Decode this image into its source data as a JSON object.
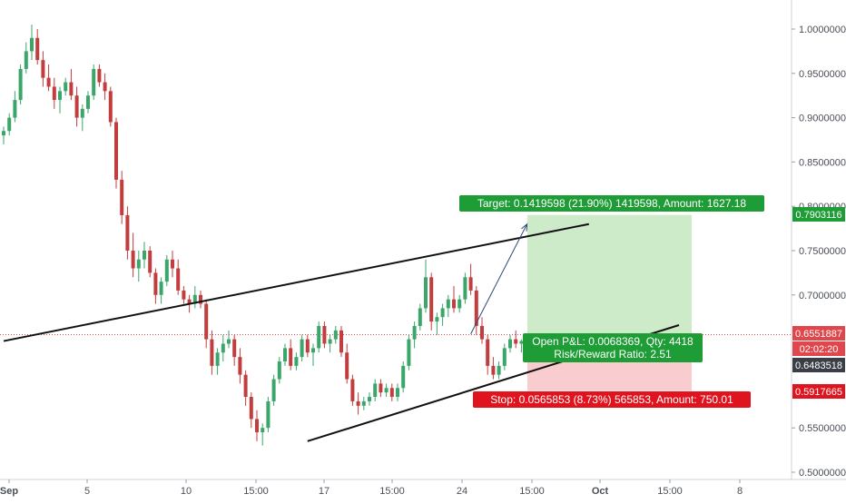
{
  "chart_data": {
    "type": "candlestick",
    "x_tick_labels": [
      "Sep",
      "5",
      "10",
      "15:00",
      "17",
      "15:00",
      "24",
      "15:00",
      "Oct",
      "15:00",
      "8"
    ],
    "y_tick_labels": [
      "1.0000000",
      "0.9500000",
      "0.9000000",
      "0.8500000",
      "0.8000000",
      "0.7500000",
      "0.7000000",
      "0.5500000",
      "0.5000000"
    ],
    "ylim": [
      0.495,
      1.05
    ],
    "price_tags": [
      {
        "label": "0.7903116",
        "value": 0.7903116,
        "kind": "target"
      },
      {
        "label": "0.6551887",
        "value": 0.6551887,
        "kind": "current"
      },
      {
        "label": "02:02:20",
        "value": 0.638,
        "kind": "countdown"
      },
      {
        "label": "0.6483518",
        "value": 0.6483518,
        "kind": "entry"
      },
      {
        "label": "0.5917665",
        "value": 0.5917665,
        "kind": "stop"
      }
    ],
    "current_price": 0.6551887,
    "position": {
      "side": "long",
      "entry": 0.6483518,
      "target": 0.7903116,
      "stop": 0.5917665,
      "target_label": "Target: 0.1419598 (21.90%) 1419598, Amount: 1627.18",
      "stop_label": "Stop: 0.0565853 (8.73%) 565853, Amount: 750.01",
      "pnl_label": "Open P&L: 0.0068369, Qty: 4418",
      "rr_label": "Risk/Reward Ratio: 2.51"
    },
    "channel_lines": [
      {
        "name": "upper",
        "start": [
          0,
          0.648
        ],
        "end": [
          104,
          0.78
        ]
      },
      {
        "name": "lower",
        "start": [
          54,
          0.535
        ],
        "end": [
          120,
          0.666
        ]
      }
    ],
    "arrow": {
      "from": [
        83,
        0.656
      ],
      "to": [
        93,
        0.78
      ]
    },
    "candles": [
      [
        0.88,
        0.89,
        0.87,
        0.885
      ],
      [
        0.885,
        0.905,
        0.88,
        0.9
      ],
      [
        0.9,
        0.93,
        0.895,
        0.92
      ],
      [
        0.92,
        0.96,
        0.915,
        0.955
      ],
      [
        0.955,
        0.985,
        0.95,
        0.975
      ],
      [
        0.975,
        1.005,
        0.965,
        0.99
      ],
      [
        0.99,
        1.0,
        0.96,
        0.965
      ],
      [
        0.965,
        0.975,
        0.935,
        0.945
      ],
      [
        0.945,
        0.96,
        0.93,
        0.935
      ],
      [
        0.935,
        0.945,
        0.91,
        0.92
      ],
      [
        0.92,
        0.935,
        0.905,
        0.93
      ],
      [
        0.93,
        0.945,
        0.925,
        0.94
      ],
      [
        0.94,
        0.955,
        0.92,
        0.925
      ],
      [
        0.925,
        0.935,
        0.89,
        0.9
      ],
      [
        0.9,
        0.915,
        0.885,
        0.91
      ],
      [
        0.91,
        0.93,
        0.905,
        0.925
      ],
      [
        0.925,
        0.96,
        0.92,
        0.955
      ],
      [
        0.955,
        0.96,
        0.935,
        0.94
      ],
      [
        0.94,
        0.95,
        0.92,
        0.93
      ],
      [
        0.93,
        0.935,
        0.89,
        0.895
      ],
      [
        0.895,
        0.9,
        0.82,
        0.83
      ],
      [
        0.83,
        0.84,
        0.78,
        0.79
      ],
      [
        0.79,
        0.8,
        0.74,
        0.75
      ],
      [
        0.75,
        0.77,
        0.72,
        0.73
      ],
      [
        0.73,
        0.75,
        0.715,
        0.74
      ],
      [
        0.74,
        0.76,
        0.73,
        0.75
      ],
      [
        0.75,
        0.755,
        0.72,
        0.725
      ],
      [
        0.725,
        0.73,
        0.69,
        0.7
      ],
      [
        0.7,
        0.72,
        0.69,
        0.715
      ],
      [
        0.715,
        0.745,
        0.71,
        0.74
      ],
      [
        0.74,
        0.75,
        0.72,
        0.73
      ],
      [
        0.73,
        0.74,
        0.7,
        0.705
      ],
      [
        0.705,
        0.71,
        0.69,
        0.695
      ],
      [
        0.695,
        0.7,
        0.68,
        0.69
      ],
      [
        0.69,
        0.71,
        0.685,
        0.7
      ],
      [
        0.7,
        0.705,
        0.685,
        0.69
      ],
      [
        0.69,
        0.695,
        0.64,
        0.65
      ],
      [
        0.65,
        0.66,
        0.61,
        0.62
      ],
      [
        0.62,
        0.64,
        0.61,
        0.635
      ],
      [
        0.635,
        0.655,
        0.625,
        0.645
      ],
      [
        0.645,
        0.66,
        0.64,
        0.65
      ],
      [
        0.65,
        0.655,
        0.62,
        0.63
      ],
      [
        0.63,
        0.64,
        0.6,
        0.61
      ],
      [
        0.61,
        0.615,
        0.575,
        0.585
      ],
      [
        0.585,
        0.59,
        0.55,
        0.56
      ],
      [
        0.56,
        0.57,
        0.535,
        0.545
      ],
      [
        0.545,
        0.555,
        0.53,
        0.55
      ],
      [
        0.55,
        0.585,
        0.545,
        0.58
      ],
      [
        0.58,
        0.61,
        0.575,
        0.605
      ],
      [
        0.605,
        0.63,
        0.6,
        0.625
      ],
      [
        0.625,
        0.645,
        0.62,
        0.64
      ],
      [
        0.64,
        0.65,
        0.615,
        0.62
      ],
      [
        0.62,
        0.635,
        0.615,
        0.63
      ],
      [
        0.63,
        0.655,
        0.625,
        0.65
      ],
      [
        0.65,
        0.655,
        0.63,
        0.635
      ],
      [
        0.635,
        0.645,
        0.62,
        0.64
      ],
      [
        0.64,
        0.67,
        0.635,
        0.665
      ],
      [
        0.665,
        0.67,
        0.64,
        0.645
      ],
      [
        0.645,
        0.655,
        0.635,
        0.65
      ],
      [
        0.65,
        0.665,
        0.645,
        0.66
      ],
      [
        0.66,
        0.665,
        0.63,
        0.635
      ],
      [
        0.635,
        0.645,
        0.6,
        0.605
      ],
      [
        0.605,
        0.61,
        0.575,
        0.58
      ],
      [
        0.58,
        0.59,
        0.565,
        0.575
      ],
      [
        0.575,
        0.585,
        0.57,
        0.58
      ],
      [
        0.58,
        0.59,
        0.575,
        0.585
      ],
      [
        0.585,
        0.605,
        0.58,
        0.6
      ],
      [
        0.6,
        0.605,
        0.585,
        0.59
      ],
      [
        0.59,
        0.6,
        0.585,
        0.595
      ],
      [
        0.595,
        0.6,
        0.58,
        0.585
      ],
      [
        0.585,
        0.6,
        0.58,
        0.595
      ],
      [
        0.595,
        0.625,
        0.59,
        0.62
      ],
      [
        0.62,
        0.655,
        0.615,
        0.65
      ],
      [
        0.65,
        0.67,
        0.64,
        0.665
      ],
      [
        0.665,
        0.69,
        0.66,
        0.685
      ],
      [
        0.685,
        0.74,
        0.68,
        0.72
      ],
      [
        0.72,
        0.725,
        0.66,
        0.67
      ],
      [
        0.67,
        0.68,
        0.655,
        0.675
      ],
      [
        0.675,
        0.69,
        0.665,
        0.685
      ],
      [
        0.685,
        0.7,
        0.675,
        0.695
      ],
      [
        0.695,
        0.71,
        0.68,
        0.685
      ],
      [
        0.685,
        0.7,
        0.68,
        0.695
      ],
      [
        0.695,
        0.725,
        0.69,
        0.72
      ],
      [
        0.72,
        0.735,
        0.7,
        0.705
      ],
      [
        0.705,
        0.71,
        0.655,
        0.665
      ],
      [
        0.665,
        0.675,
        0.645,
        0.65
      ],
      [
        0.65,
        0.655,
        0.61,
        0.62
      ],
      [
        0.62,
        0.63,
        0.605,
        0.61
      ],
      [
        0.61,
        0.625,
        0.605,
        0.62
      ],
      [
        0.62,
        0.645,
        0.615,
        0.64
      ],
      [
        0.64,
        0.655,
        0.635,
        0.65
      ],
      [
        0.65,
        0.66,
        0.64,
        0.645
      ],
      [
        0.645,
        0.65,
        0.635,
        0.648
      ]
    ]
  }
}
